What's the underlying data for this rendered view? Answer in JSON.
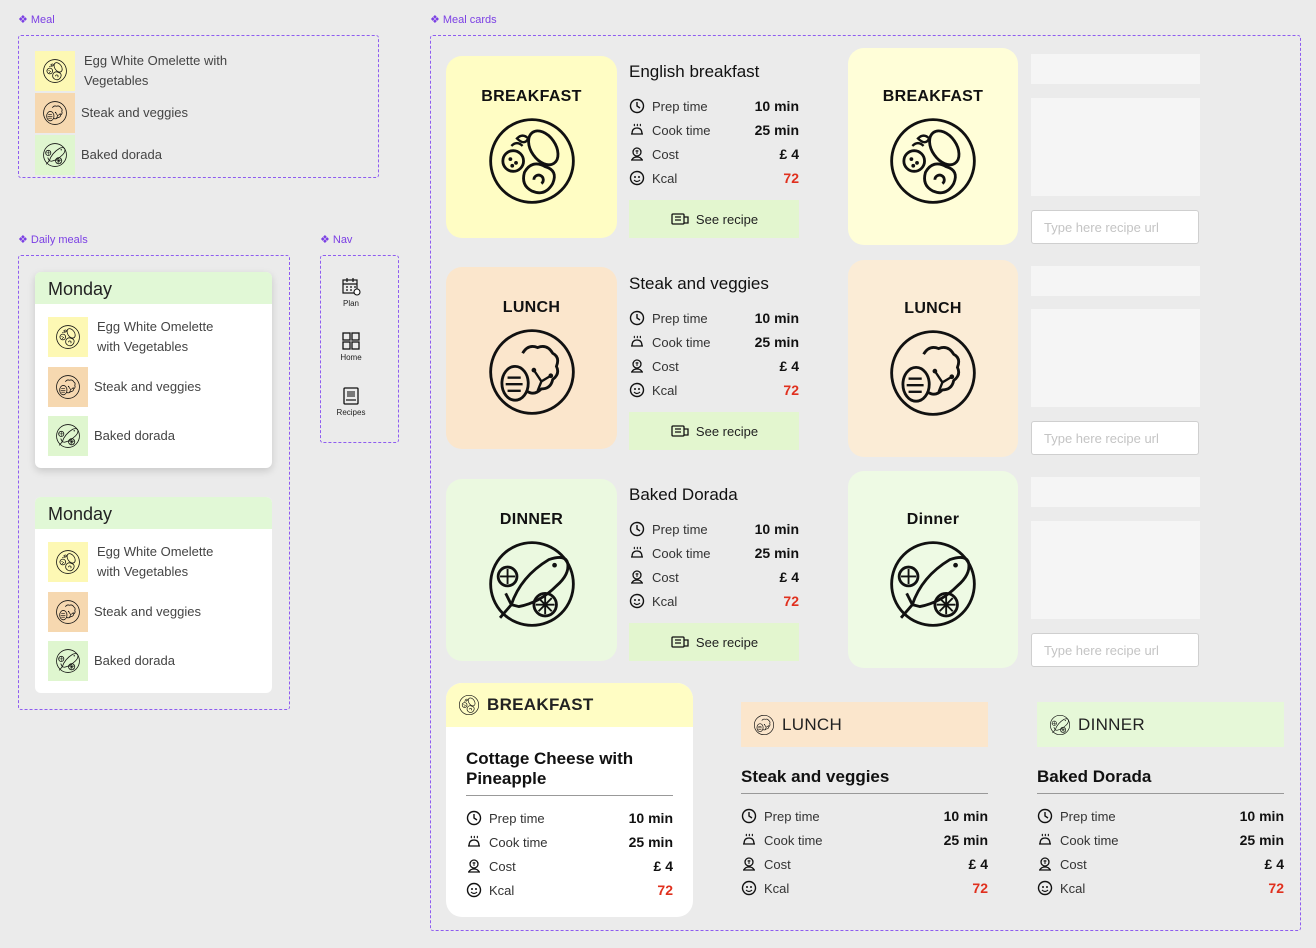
{
  "frames": {
    "meal": "Meal",
    "daily_meals": "Daily meals",
    "nav": "Nav",
    "meal_cards": "Meal cards"
  },
  "meal": {
    "items": [
      {
        "label": "Egg White Omelette with Vegetables",
        "line1": "Egg White Omelette with",
        "line2": "Vegetables",
        "icon": "breakfast-plate-icon"
      },
      {
        "label": "Steak and veggies",
        "icon": "lunch-plate-icon"
      },
      {
        "label": "Baked dorada",
        "icon": "dinner-plate-icon"
      }
    ]
  },
  "daily": [
    {
      "day": "Monday",
      "items": [
        {
          "line1": "Egg White Omelette",
          "line2": "with Vegetables"
        },
        {
          "label": "Steak and veggies"
        },
        {
          "label": "Baked dorada"
        }
      ]
    },
    {
      "day": "Monday",
      "items": [
        {
          "line1": "Egg White Omelette",
          "line2": "with Vegetables"
        },
        {
          "label": "Steak and veggies"
        },
        {
          "label": "Baked dorada"
        }
      ]
    }
  ],
  "nav": {
    "items": [
      {
        "label": "Plan",
        "icon": "calendar-icon"
      },
      {
        "label": "Home",
        "icon": "grid-icon"
      },
      {
        "label": "Recipes",
        "icon": "recipe-book-icon"
      }
    ]
  },
  "labels": {
    "prep": "Prep time",
    "cook": "Cook time",
    "cost": "Cost",
    "kcal": "Kcal",
    "see_recipe": "See recipe",
    "url_placeholder": "Type here recipe url"
  },
  "cards": [
    {
      "meal": "BREAKFAST",
      "alt_meal": "BREAKFAST",
      "title": "English breakfast",
      "prep": "10 min",
      "cook": "25 min",
      "cost": "£ 4",
      "kcal": "72",
      "color": "#fffdd0"
    },
    {
      "meal": "LUNCH",
      "alt_meal": "LUNCH",
      "title": "Steak and veggies",
      "prep": "10 min",
      "cook": "25 min",
      "cost": "£ 4",
      "kcal": "72",
      "color": "#fbe9d2"
    },
    {
      "meal": "DINNER",
      "alt_meal": "Dinner",
      "title": "Baked Dorada",
      "prep": "10 min",
      "cook": "25 min",
      "cost": "£ 4",
      "kcal": "72",
      "color": "#ebf9e0"
    }
  ],
  "bottom": [
    {
      "meal": "BREAKFAST",
      "title_line1": "Cottage Cheese with",
      "title_line2": "Pineapple",
      "prep": "10 min",
      "cook": "25 min",
      "cost": "£ 4",
      "kcal": "72"
    },
    {
      "meal": "LUNCH",
      "title": "Steak and veggies",
      "prep": "10 min",
      "cook": "25 min",
      "cost": "£ 4",
      "kcal": "72"
    },
    {
      "meal": "DINNER",
      "title": "Baked Dorada",
      "prep": "10 min",
      "cook": "25 min",
      "cost": "£ 4",
      "kcal": "72"
    }
  ],
  "colors": {
    "accent": "#7b3fe4",
    "kcal": "#e0301e",
    "breakfast": "#fffdd0",
    "lunch": "#fbe9d2",
    "dinner": "#ebf9e0",
    "button": "#e3f6cf"
  }
}
